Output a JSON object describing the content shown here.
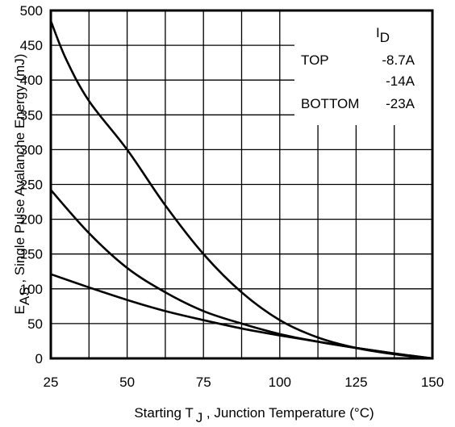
{
  "chart_data": {
    "type": "line",
    "title": "",
    "xlabel": "Starting T J , Junction Temperature (°C)",
    "xlabel_parts": {
      "pre": "Starting T",
      "sub": "J",
      "post": " , Junction Temperature (°C)"
    },
    "ylabel": "EAS , Single Pulse Avalanche Energy (mJ)",
    "ylabel_parts": {
      "pre": "E",
      "sub": "AS",
      "post": " , Single Pulse Avalanche Energy (mJ)"
    },
    "xlim": [
      25,
      150
    ],
    "ylim": [
      0,
      500
    ],
    "xticks": [
      25,
      50,
      75,
      100,
      125,
      150
    ],
    "yticks": [
      0,
      50,
      100,
      150,
      200,
      250,
      300,
      350,
      400,
      450,
      500
    ],
    "x_minor_step": 12.5,
    "grid": true,
    "legend": {
      "placement": "top-right",
      "header_pre": "I",
      "header_sub": "D",
      "rows": [
        {
          "position": "TOP",
          "value": "-8.7A"
        },
        {
          "position": "",
          "value": "-14A"
        },
        {
          "position": "BOTTOM",
          "value": "-23A"
        }
      ]
    },
    "series": [
      {
        "x": [
          25,
          30,
          37.5,
          50,
          62.5,
          75,
          87.5,
          100,
          112.5,
          125,
          137.5,
          150
        ],
        "values": [
          485,
          430,
          370,
          300,
          220,
          150,
          95,
          55,
          30,
          15,
          6,
          0
        ]
      },
      {
        "x": [
          25,
          37.5,
          50,
          62.5,
          75,
          87.5,
          100,
          112.5,
          125,
          137.5,
          150
        ],
        "values": [
          242,
          180,
          130,
          95,
          68,
          50,
          35,
          24,
          15,
          7,
          0
        ]
      },
      {
        "x": [
          25,
          37.5,
          50,
          62.5,
          75,
          87.5,
          100,
          112.5,
          125,
          137.5,
          150
        ],
        "values": [
          121,
          102,
          84,
          68,
          55,
          43,
          33,
          24,
          15,
          7,
          0
        ]
      }
    ]
  }
}
